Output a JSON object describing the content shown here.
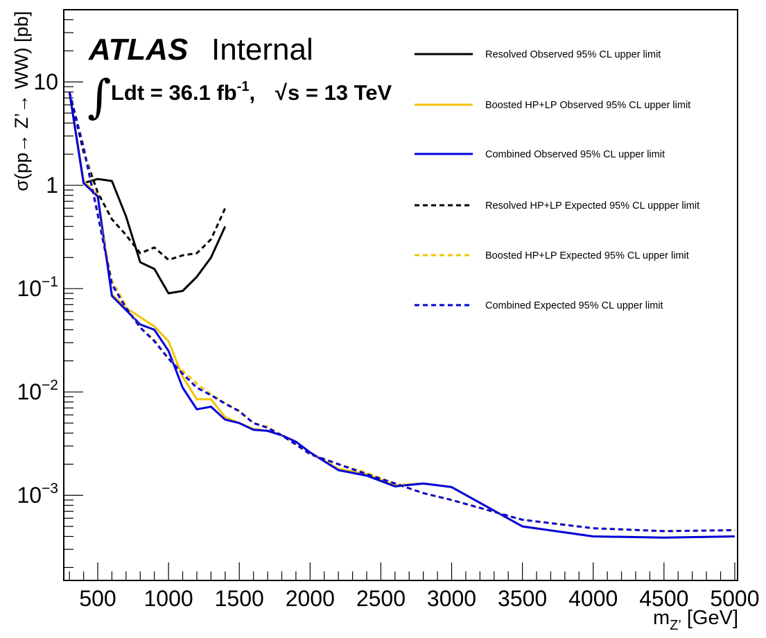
{
  "chart_data": {
    "type": "line",
    "experiment": "ATLAS",
    "status": "Internal",
    "lumi_text": {
      "integral": "Ldt = 36.1 fb",
      "lumi_exp": "-1",
      "sep": ",",
      "energy": "s = 13 TeV"
    },
    "ylabel": "σ(pp→ Z’→ WW) [pb]",
    "xlabel": {
      "main": "m",
      "sub": "Z’",
      "unit": " [GeV]"
    },
    "xlim": [
      260,
      5020
    ],
    "ylim": [
      0.00015,
      50
    ],
    "yscale": "log",
    "grid": false,
    "legend_position": "top-right",
    "xticks": [
      500,
      1000,
      1500,
      2000,
      2500,
      3000,
      3500,
      4000,
      4500,
      5000
    ],
    "yticks": [
      {
        "value": 10,
        "base": "10",
        "exp": ""
      },
      {
        "value": 1,
        "base": "1",
        "exp": ""
      },
      {
        "value": 0.1,
        "base": "10",
        "exp": "−1"
      },
      {
        "value": 0.01,
        "base": "10",
        "exp": "−2"
      },
      {
        "value": 0.001,
        "base": "10",
        "exp": "−3"
      }
    ],
    "series": [
      {
        "name": "Resolved Observed 95% CL upper limit",
        "color": "#000000",
        "dashed": false,
        "points": [
          [
            300,
            8
          ],
          [
            400,
            1.05
          ],
          [
            500,
            1.15
          ],
          [
            600,
            1.1
          ],
          [
            700,
            0.5
          ],
          [
            800,
            0.18
          ],
          [
            900,
            0.155
          ],
          [
            1000,
            0.09
          ],
          [
            1100,
            0.095
          ],
          [
            1200,
            0.13
          ],
          [
            1300,
            0.2
          ],
          [
            1400,
            0.4
          ]
        ]
      },
      {
        "name": "Boosted HP+LP Observed 95% CL upper limit",
        "color": "#f5c200",
        "dashed": false,
        "points": [
          [
            300,
            8
          ],
          [
            400,
            1.1
          ],
          [
            500,
            0.8
          ],
          [
            600,
            0.088
          ],
          [
            700,
            0.065
          ],
          [
            800,
            0.053
          ],
          [
            900,
            0.043
          ],
          [
            1000,
            0.031
          ],
          [
            1100,
            0.014
          ],
          [
            1200,
            0.0085
          ],
          [
            1300,
            0.0085
          ],
          [
            1400,
            0.0057
          ],
          [
            1500,
            0.005
          ],
          [
            1600,
            0.0044
          ],
          [
            1700,
            0.0042
          ],
          [
            1800,
            0.0038
          ],
          [
            1900,
            0.0033
          ],
          [
            2000,
            0.0026
          ],
          [
            2200,
            0.0018
          ],
          [
            2400,
            0.0016
          ],
          [
            2600,
            0.00125
          ],
          [
            2800,
            0.0013
          ],
          [
            3000,
            0.0012
          ],
          [
            3500,
            0.0005
          ],
          [
            4000,
            0.0004
          ],
          [
            4500,
            0.00039
          ],
          [
            5000,
            0.0004
          ]
        ]
      },
      {
        "name": "Combined Observed 95% CL upper limit",
        "color": "#0000dd",
        "dashed": false,
        "points": [
          [
            300,
            8
          ],
          [
            400,
            1.05
          ],
          [
            500,
            0.78
          ],
          [
            600,
            0.085
          ],
          [
            700,
            0.062
          ],
          [
            800,
            0.045
          ],
          [
            900,
            0.04
          ],
          [
            1000,
            0.025
          ],
          [
            1100,
            0.011
          ],
          [
            1200,
            0.0068
          ],
          [
            1300,
            0.0072
          ],
          [
            1400,
            0.0054
          ],
          [
            1500,
            0.005
          ],
          [
            1600,
            0.0043
          ],
          [
            1700,
            0.0042
          ],
          [
            1800,
            0.0038
          ],
          [
            1900,
            0.0033
          ],
          [
            2000,
            0.0026
          ],
          [
            2200,
            0.00175
          ],
          [
            2400,
            0.00155
          ],
          [
            2600,
            0.00122
          ],
          [
            2800,
            0.0013
          ],
          [
            3000,
            0.0012
          ],
          [
            3500,
            0.0005
          ],
          [
            4000,
            0.0004
          ],
          [
            4500,
            0.00039
          ],
          [
            5000,
            0.0004
          ]
        ]
      },
      {
        "name": "Resolved HP+LP Expected 95% CL uppper limit",
        "color": "#000000",
        "dashed": true,
        "points": [
          [
            300,
            8
          ],
          [
            400,
            2.1
          ],
          [
            500,
            0.85
          ],
          [
            600,
            0.47
          ],
          [
            700,
            0.33
          ],
          [
            800,
            0.22
          ],
          [
            900,
            0.25
          ],
          [
            1000,
            0.19
          ],
          [
            1100,
            0.21
          ],
          [
            1200,
            0.22
          ],
          [
            1300,
            0.3
          ],
          [
            1400,
            0.6
          ]
        ]
      },
      {
        "name": "Boosted HP+LP Expected 95% CL upper limit",
        "color": "#f5c200",
        "dashed": true,
        "points": [
          [
            300,
            8
          ],
          [
            400,
            2.4
          ],
          [
            500,
            0.55
          ],
          [
            600,
            0.12
          ],
          [
            700,
            0.068
          ],
          [
            800,
            0.042
          ],
          [
            900,
            0.032
          ],
          [
            1000,
            0.021
          ],
          [
            1100,
            0.016
          ],
          [
            1200,
            0.012
          ],
          [
            1300,
            0.0095
          ],
          [
            1400,
            0.0078
          ],
          [
            1500,
            0.0066
          ],
          [
            1600,
            0.005
          ],
          [
            1700,
            0.0046
          ],
          [
            1800,
            0.0038
          ],
          [
            1900,
            0.0031
          ],
          [
            2000,
            0.0025
          ],
          [
            2200,
            0.002
          ],
          [
            2400,
            0.00165
          ],
          [
            2600,
            0.0013
          ],
          [
            2800,
            0.00105
          ],
          [
            3000,
            0.0009
          ],
          [
            3500,
            0.00058
          ],
          [
            4000,
            0.00048
          ],
          [
            4500,
            0.00045
          ],
          [
            5000,
            0.00046
          ]
        ]
      },
      {
        "name": "Combined Expected 95% CL upper limit",
        "color": "#0000dd",
        "dashed": true,
        "points": [
          [
            300,
            8
          ],
          [
            400,
            2.3
          ],
          [
            500,
            0.52
          ],
          [
            600,
            0.11
          ],
          [
            700,
            0.065
          ],
          [
            800,
            0.042
          ],
          [
            900,
            0.031
          ],
          [
            1000,
            0.021
          ],
          [
            1100,
            0.015
          ],
          [
            1200,
            0.011
          ],
          [
            1300,
            0.0093
          ],
          [
            1400,
            0.0077
          ],
          [
            1500,
            0.0065
          ],
          [
            1600,
            0.005
          ],
          [
            1700,
            0.0045
          ],
          [
            1800,
            0.0038
          ],
          [
            1900,
            0.0031
          ],
          [
            2000,
            0.0025
          ],
          [
            2200,
            0.002
          ],
          [
            2400,
            0.0016
          ],
          [
            2600,
            0.0013
          ],
          [
            2800,
            0.00105
          ],
          [
            3000,
            0.0009
          ],
          [
            3500,
            0.00058
          ],
          [
            4000,
            0.00048
          ],
          [
            4500,
            0.00045
          ],
          [
            5000,
            0.00046
          ]
        ]
      }
    ]
  }
}
